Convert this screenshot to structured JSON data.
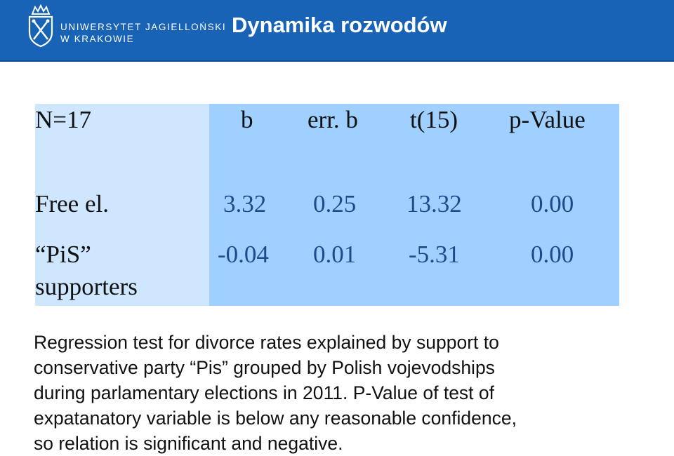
{
  "header": {
    "university_line1": "UNIWERSYTET JAGIELLOŃSKI",
    "university_line2": "W KRAKOWIE",
    "title": "Dynamika rozwodów"
  },
  "table": {
    "columns": [
      "N=17",
      "b",
      "err. b",
      "t(15)",
      "p-Value"
    ],
    "rows": [
      {
        "label": "Free el.",
        "b": "3.32",
        "err_b": "0.25",
        "t": "13.32",
        "p": "0.00"
      },
      {
        "label": "“PiS” supporters",
        "label_line1": "“PiS”",
        "label_line2": "supporters",
        "b": "-0.04",
        "err_b": "0.01",
        "t": "-5.31",
        "p": "0.00"
      }
    ]
  },
  "description": "Regression test for divorce rates explained by support to\nconservative party “Pis” grouped by Polish vojevodships\nduring parlamentary elections in 2011. P-Value of test of\nexpatanatory variable is below any reasonable confidence,\nso relation is significant and negative."
}
